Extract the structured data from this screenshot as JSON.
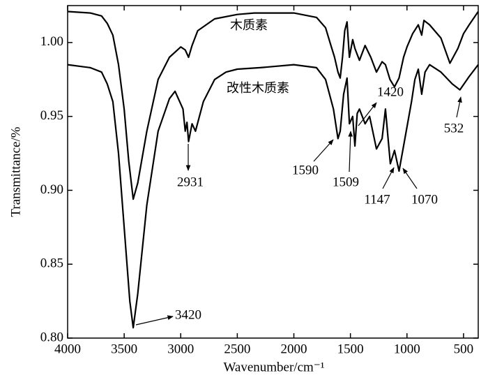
{
  "chart_data": {
    "type": "line",
    "x_label": "Wavenumber/cm⁻¹",
    "y_label": "Transmittance/%",
    "xlim": [
      4000,
      370
    ],
    "ylim": [
      0.8,
      1.025
    ],
    "xticks": [
      4000,
      3500,
      3000,
      2500,
      2000,
      1500,
      1000,
      500
    ],
    "yticks": [
      {
        "value": 0.8,
        "label": "0.80"
      },
      0.85,
      {
        "value": 0.9,
        "label": "0.90"
      },
      0.95,
      {
        "value": 1.0,
        "label": "1.00"
      }
    ],
    "series": [
      {
        "name": "木质素",
        "color": "#000000",
        "x": [
          4000,
          3800,
          3700,
          3650,
          3600,
          3550,
          3500,
          3460,
          3420,
          3380,
          3300,
          3200,
          3100,
          3000,
          2960,
          2931,
          2900,
          2850,
          2700,
          2500,
          2350,
          2000,
          1800,
          1720,
          1680,
          1640,
          1610,
          1590,
          1570,
          1550,
          1530,
          1509,
          1480,
          1460,
          1420,
          1370,
          1320,
          1270,
          1220,
          1190,
          1150,
          1110,
          1070,
          1030,
          1000,
          950,
          900,
          870,
          850,
          800,
          700,
          620,
          550,
          500,
          450,
          370
        ],
        "values": [
          1.021,
          1.02,
          1.018,
          1.013,
          1.005,
          0.985,
          0.955,
          0.92,
          0.894,
          0.905,
          0.94,
          0.975,
          0.99,
          0.997,
          0.995,
          0.99,
          0.998,
          1.008,
          1.016,
          1.019,
          1.02,
          1.02,
          1.017,
          1.01,
          1.0,
          0.99,
          0.98,
          0.976,
          0.99,
          1.008,
          1.014,
          0.99,
          1.002,
          0.996,
          0.988,
          0.998,
          0.99,
          0.98,
          0.987,
          0.985,
          0.975,
          0.97,
          0.976,
          0.99,
          0.997,
          1.006,
          1.012,
          1.005,
          1.015,
          1.012,
          1.003,
          0.986,
          0.996,
          1.006,
          1.012,
          1.021
        ]
      },
      {
        "name": "改性木质素",
        "color": "#000000",
        "x": [
          4000,
          3800,
          3700,
          3650,
          3600,
          3550,
          3500,
          3450,
          3420,
          3380,
          3300,
          3200,
          3100,
          3050,
          2980,
          2960,
          2945,
          2931,
          2900,
          2870,
          2800,
          2700,
          2600,
          2500,
          2300,
          2000,
          1800,
          1720,
          1650,
          1610,
          1590,
          1560,
          1530,
          1509,
          1480,
          1460,
          1440,
          1420,
          1370,
          1330,
          1270,
          1220,
          1190,
          1147,
          1110,
          1070,
          1030,
          960,
          930,
          900,
          870,
          840,
          800,
          700,
          600,
          532,
          450,
          370
        ],
        "values": [
          0.985,
          0.983,
          0.98,
          0.972,
          0.96,
          0.925,
          0.875,
          0.825,
          0.807,
          0.83,
          0.89,
          0.94,
          0.962,
          0.967,
          0.955,
          0.94,
          0.946,
          0.933,
          0.945,
          0.94,
          0.96,
          0.975,
          0.98,
          0.982,
          0.983,
          0.985,
          0.983,
          0.975,
          0.955,
          0.935,
          0.94,
          0.965,
          0.976,
          0.945,
          0.95,
          0.93,
          0.952,
          0.955,
          0.945,
          0.95,
          0.928,
          0.935,
          0.955,
          0.918,
          0.927,
          0.913,
          0.93,
          0.96,
          0.975,
          0.982,
          0.965,
          0.98,
          0.985,
          0.98,
          0.972,
          0.968,
          0.977,
          0.985
        ]
      }
    ],
    "annotations": [
      3420,
      2931,
      1590,
      1509,
      1420,
      1147,
      1070,
      532
    ]
  }
}
